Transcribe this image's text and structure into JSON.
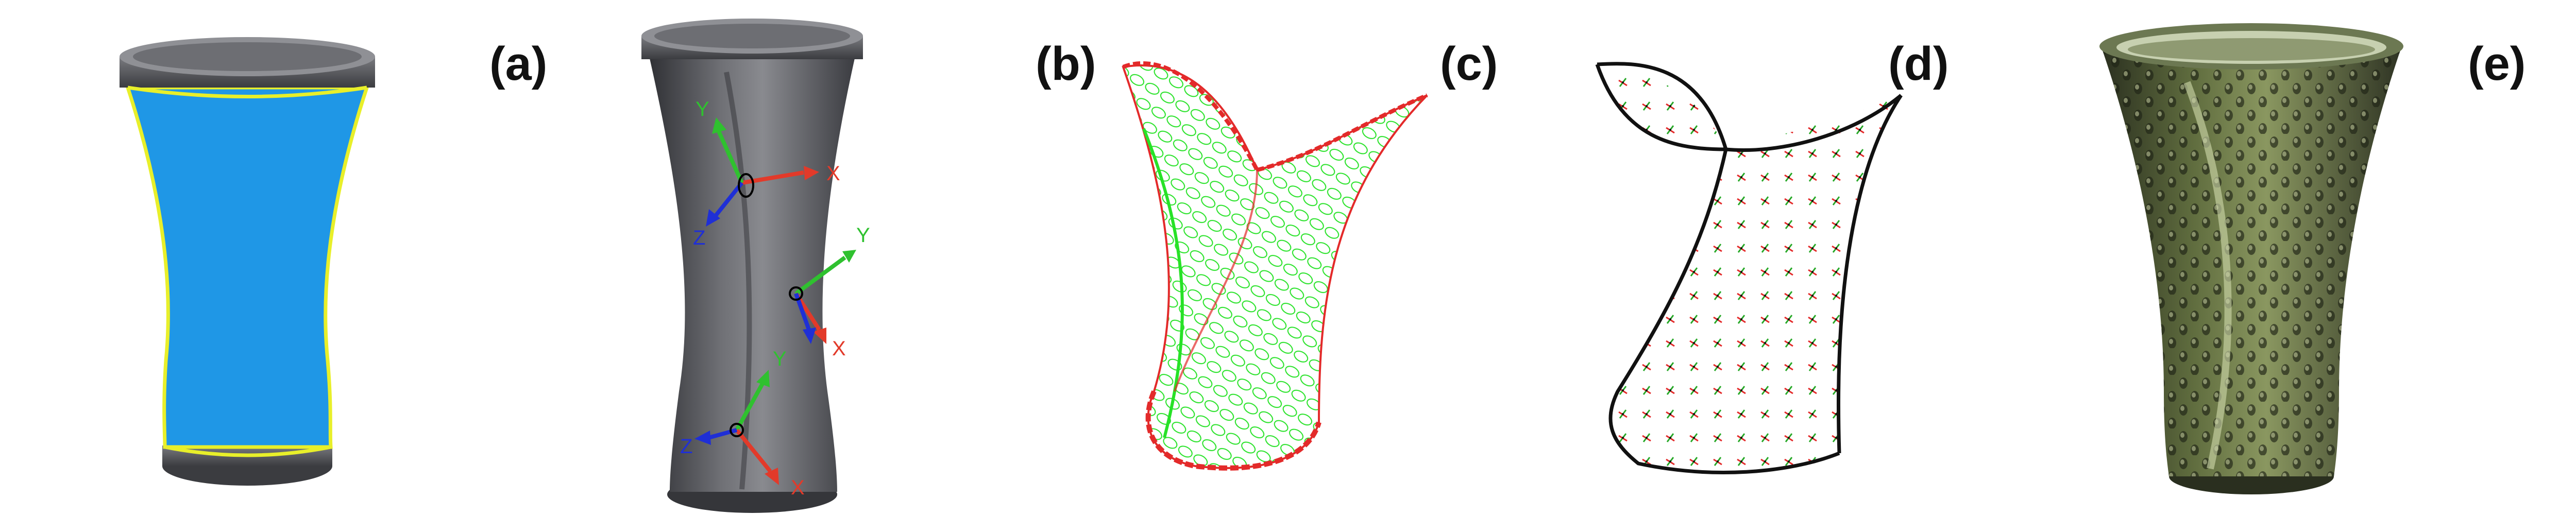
{
  "panels": [
    {
      "label": "(a)"
    },
    {
      "label": "(b)"
    },
    {
      "label": "(c)"
    },
    {
      "label": "(d)"
    },
    {
      "label": "(e)"
    }
  ],
  "axes": {
    "x": "X",
    "y": "Y",
    "z": "Z"
  },
  "colors": {
    "body_gray": "#5e5f63",
    "surface_blue": "#1f97e6",
    "boundary_yellow": "#e8ef2a",
    "axis_x": "#e23a2a",
    "axis_y": "#2fc12f",
    "axis_z": "#1f2fd6",
    "mesh_green": "#27e227",
    "mesh_red": "#e32a2a",
    "curve_black": "#111111",
    "textured_green": "#4f5b33"
  }
}
